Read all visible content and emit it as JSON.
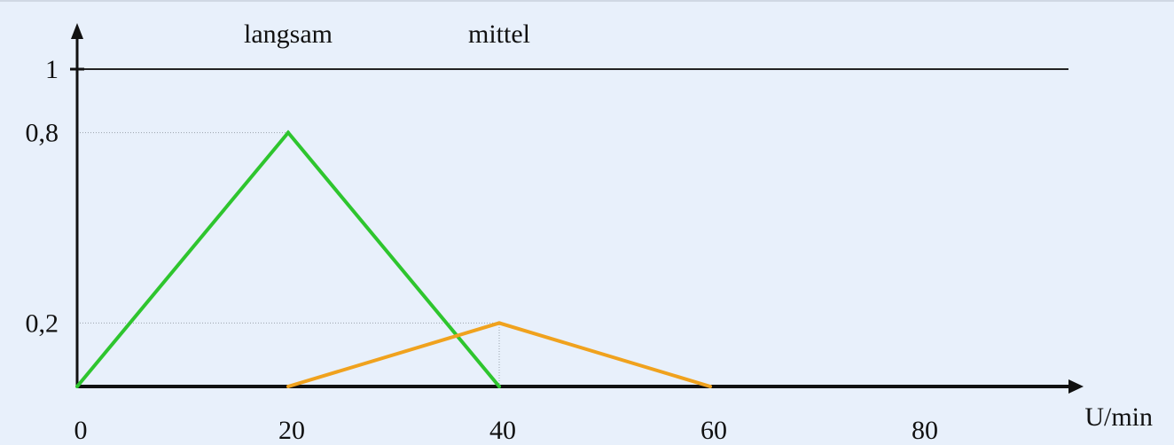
{
  "chart_data": {
    "type": "line",
    "xlabel": "U/min",
    "ylabel": "",
    "xlim": [
      0,
      90
    ],
    "ylim": [
      0,
      1
    ],
    "x_ticks": [
      {
        "value": 0,
        "label": "0"
      },
      {
        "value": 20,
        "label": "20"
      },
      {
        "value": 40,
        "label": "40"
      },
      {
        "value": 60,
        "label": "60"
      },
      {
        "value": 80,
        "label": "80"
      }
    ],
    "y_ticks": [
      {
        "value": 1,
        "label": "1"
      },
      {
        "value": 0.8,
        "label": "0,8"
      },
      {
        "value": 0.2,
        "label": "0,2"
      }
    ],
    "reference_line": {
      "y": 1
    },
    "guides": [
      {
        "from": [
          0,
          0.8
        ],
        "to": [
          20,
          0.8
        ]
      },
      {
        "from": [
          0,
          0.2
        ],
        "to": [
          40,
          0.2
        ]
      },
      {
        "from": [
          40,
          0
        ],
        "to": [
          40,
          0.2
        ]
      }
    ],
    "series": [
      {
        "name": "langsam",
        "color": "#2ec52e",
        "points": [
          [
            0,
            0
          ],
          [
            20,
            0.8
          ],
          [
            40,
            0
          ]
        ]
      },
      {
        "name": "mittel",
        "color": "#f0a21e",
        "points": [
          [
            20,
            0
          ],
          [
            40,
            0.2
          ],
          [
            60,
            0
          ]
        ]
      }
    ]
  }
}
